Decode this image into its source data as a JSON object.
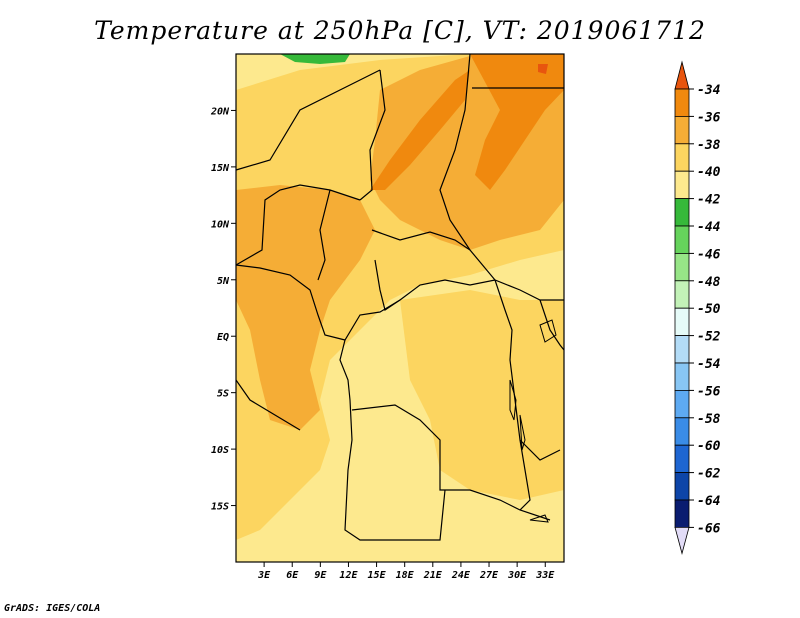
{
  "title": "Temperature at 250hPa [C], VT: 2019061712",
  "credit": "GrADS: IGES/COLA",
  "map": {
    "lat_labels": [
      "20N",
      "15N",
      "10N",
      "5N",
      "EQ",
      "5S",
      "10S",
      "15S"
    ],
    "lat_values": [
      20,
      15,
      10,
      5,
      0,
      -5,
      -10,
      -15
    ],
    "lon_labels": [
      "3E",
      "6E",
      "9E",
      "12E",
      "15E",
      "18E",
      "21E",
      "24E",
      "27E",
      "30E",
      "33E"
    ],
    "lon_values": [
      3,
      6,
      9,
      12,
      15,
      18,
      21,
      24,
      27,
      30,
      33
    ],
    "lon_range": [
      0,
      35
    ],
    "lat_range": [
      -20,
      25
    ]
  },
  "colorbar": {
    "labels": [
      "-34",
      "-36",
      "-38",
      "-40",
      "-42",
      "-44",
      "-46",
      "-48",
      "-50",
      "-52",
      "-54",
      "-56",
      "-58",
      "-60",
      "-62",
      "-64",
      "-66"
    ],
    "colors": [
      "#e8550e",
      "#f0890e",
      "#f5ad36",
      "#fcd560",
      "#fde98e",
      "#36b93a",
      "#66d35c",
      "#97e587",
      "#c3f2b8",
      "#e6fbf8",
      "#b3dcf7",
      "#88c6f4",
      "#5eaaf2",
      "#3a8ce7",
      "#1e66d2",
      "#0d45a8",
      "#0a1c70",
      "#e2dcf7"
    ]
  }
}
